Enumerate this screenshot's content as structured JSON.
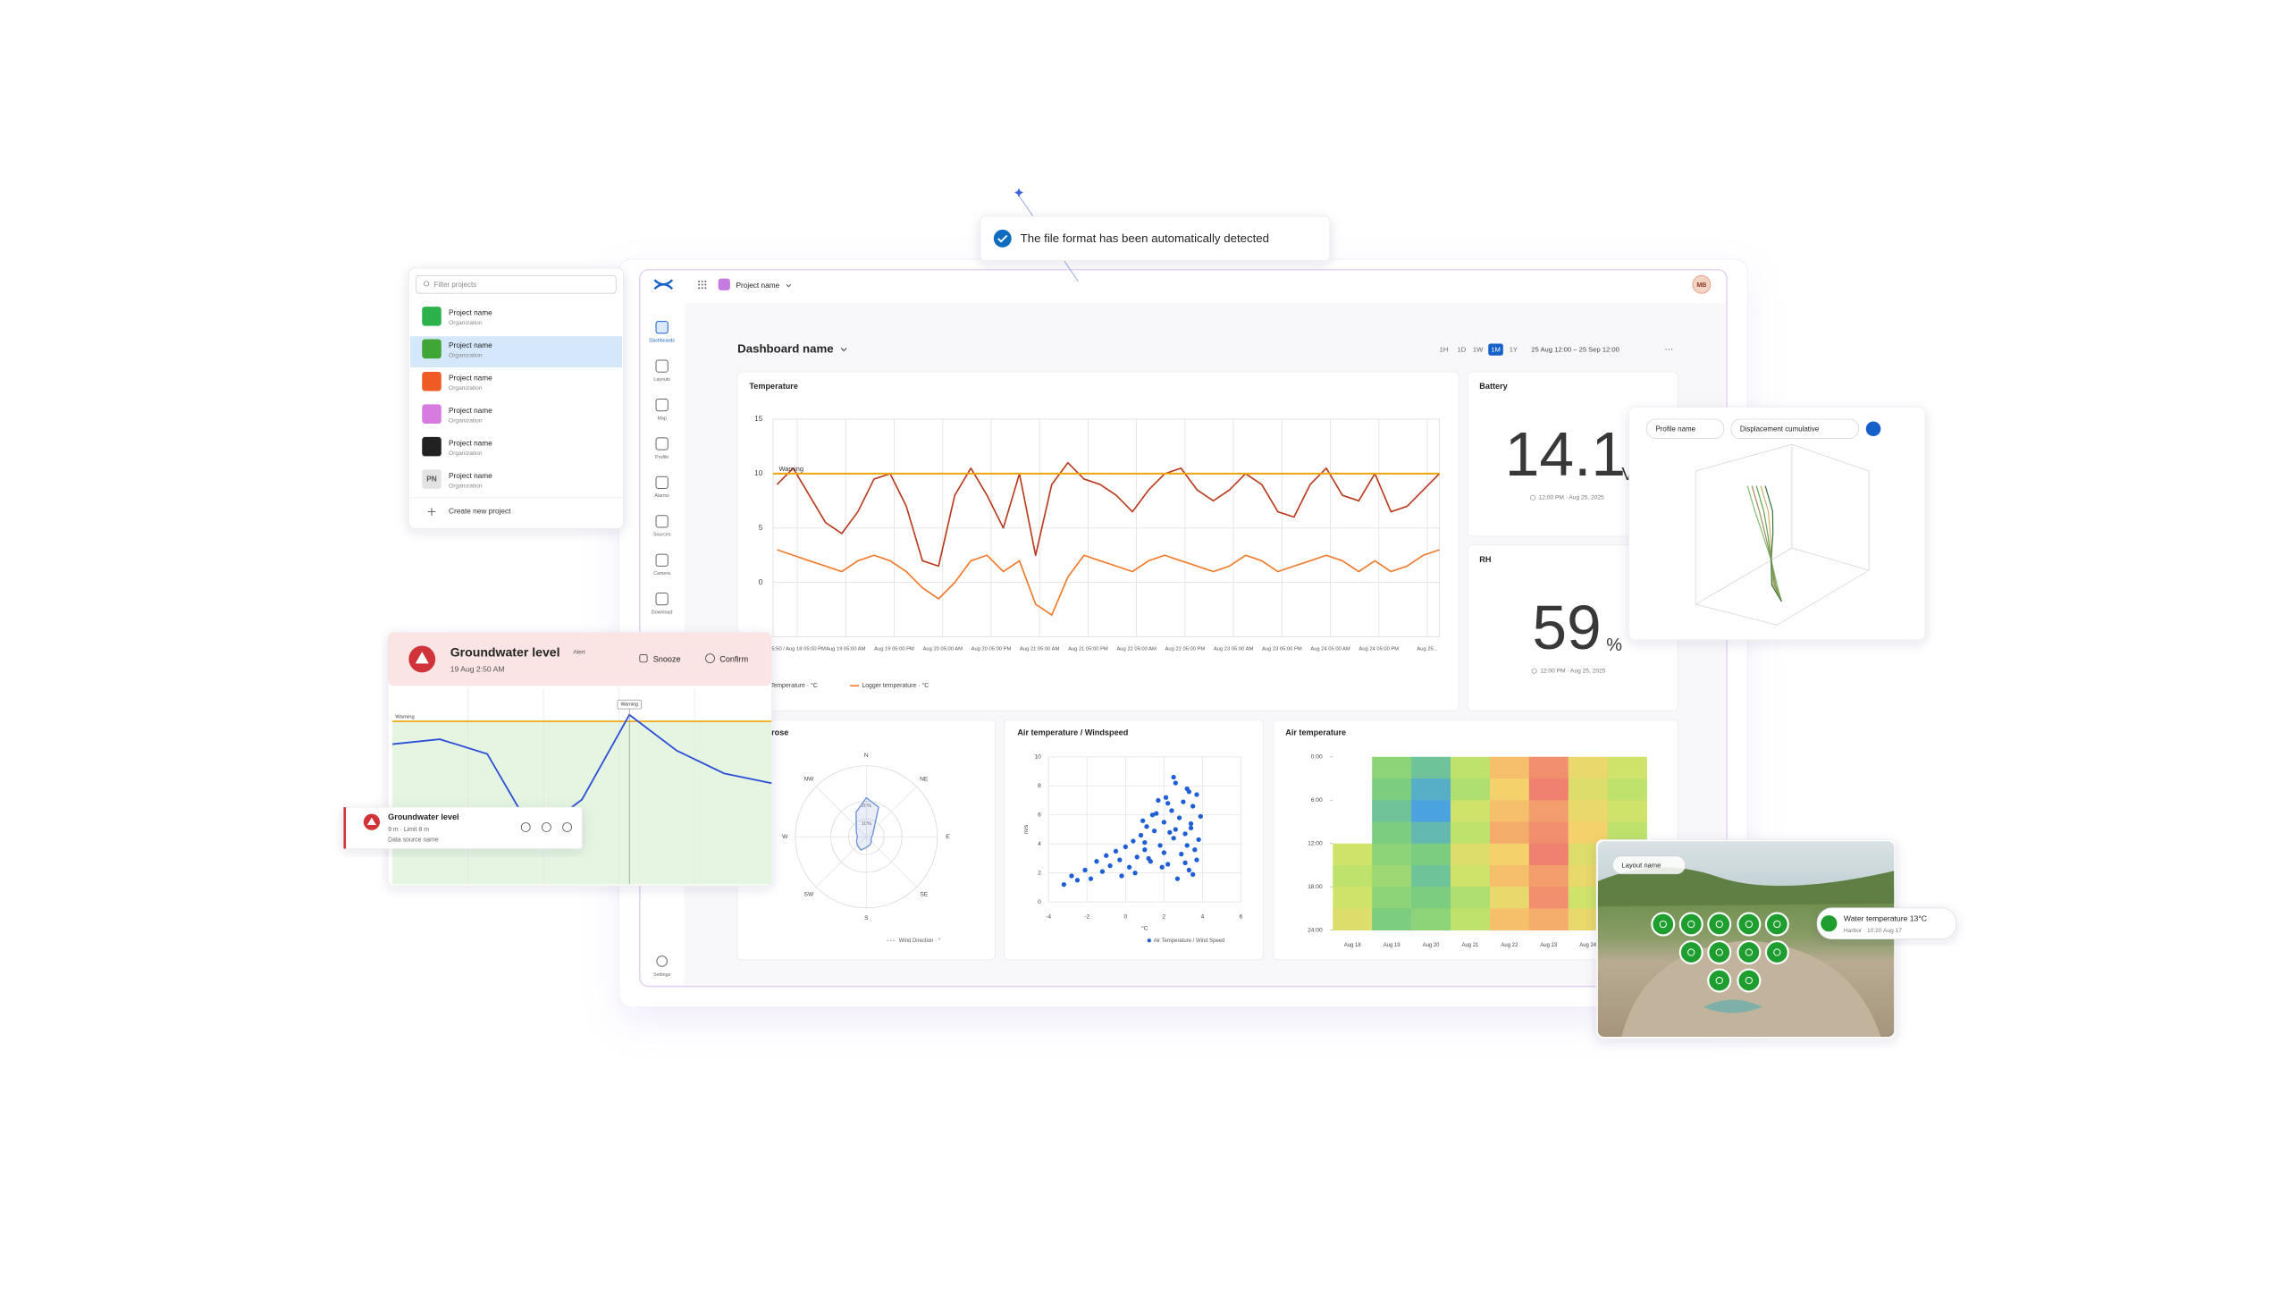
{
  "toast": {
    "message": "The file format has been automatically detected"
  },
  "project_picker": {
    "filter_placeholder": "Filter projects",
    "projects": [
      {
        "name": "Project name",
        "organization": "Organization",
        "color": "#2bb24c"
      },
      {
        "name": "Project name",
        "organization": "Organization",
        "color": "#3fa535",
        "selected": true
      },
      {
        "name": "Project name",
        "organization": "Organization",
        "color": "#f05a24"
      },
      {
        "name": "Project name",
        "organization": "Organization",
        "color": "#d77be0"
      },
      {
        "name": "Project name",
        "organization": "Organization",
        "color": "#222222"
      },
      {
        "name": "Project name",
        "organization": "Organization",
        "badge": "PN"
      }
    ],
    "create_label": "Create new project"
  },
  "app_header": {
    "project": "Project name",
    "avatar": "MB"
  },
  "sidebar": {
    "items": [
      "Dashboards",
      "Layouts",
      "Map",
      "Profile",
      "Alarms",
      "Sources",
      "Camera",
      "Download"
    ],
    "active": "Dashboards",
    "footer": "Settings"
  },
  "dashboard": {
    "title": "Dashboard name",
    "ranges": [
      "1H",
      "1D",
      "1W",
      "1M",
      "1Y"
    ],
    "active_range": "1M",
    "date_range": "25 Aug 12:00 – 25 Sep 12:00",
    "more": "···"
  },
  "metrics": [
    {
      "title": "Battery",
      "value": 14.1,
      "unit": "V",
      "timestamp": "12:00 PM · Aug 25, 2025"
    },
    {
      "title": "RH",
      "value": 59,
      "unit": "%",
      "timestamp": "12:00 PM · Aug 25, 2025"
    }
  ],
  "chart_data": [
    {
      "type": "line",
      "title": "Temperature",
      "x": [
        12,
        16,
        20,
        24,
        28,
        32,
        36,
        40,
        44,
        48,
        52,
        56,
        60,
        64,
        68,
        72,
        76,
        80,
        84,
        88,
        92,
        96,
        100,
        104,
        108,
        112,
        116,
        120,
        124,
        128,
        132,
        136,
        140,
        144,
        148,
        152,
        156,
        160,
        164,
        168,
        172,
        176
      ],
      "xlim": [
        11,
        176
      ],
      "xticks": [
        {
          "value": 17,
          "label": "05:50 / Aug 18 05:00 PM"
        },
        {
          "value": 29,
          "label": "Aug 19 05:00 AM"
        },
        {
          "value": 41,
          "label": "Aug 19 05:00 PM"
        },
        {
          "value": 53,
          "label": "Aug 20 05:00 AM"
        },
        {
          "value": 65,
          "label": "Aug 20 05:00 PM"
        },
        {
          "value": 77,
          "label": "Aug 21 05:00 AM"
        },
        {
          "value": 89,
          "label": "Aug 21 05:00 PM"
        },
        {
          "value": 101,
          "label": "Aug 22 05:00 AM"
        },
        {
          "value": 113,
          "label": "Aug 22 05:00 PM"
        },
        {
          "value": 125,
          "label": "Aug 23 05:00 AM"
        },
        {
          "value": 137,
          "label": "Aug 23 05:00 PM"
        },
        {
          "value": 149,
          "label": "Aug 24 05:00 AM"
        },
        {
          "value": 161,
          "label": "Aug 24 05:00 PM"
        },
        {
          "value": 173,
          "label": "Aug 25..."
        }
      ],
      "ylim": [
        -5,
        15
      ],
      "yticks": [
        0,
        5,
        10,
        15
      ],
      "grid": true,
      "threshold": {
        "value": 10,
        "label": "Warning",
        "color": "#f0a30a"
      },
      "series": [
        {
          "name": "Air Temperature · °C",
          "color": "#b83b1e",
          "values": [
            9,
            10.5,
            8,
            5.5,
            4.5,
            6.5,
            9.5,
            10,
            7,
            2,
            1.5,
            8,
            10.5,
            8,
            5,
            10,
            2.5,
            9,
            11,
            9.5,
            9,
            8,
            6.5,
            8.5,
            10,
            10.5,
            8.5,
            7.5,
            8.5,
            10,
            9,
            6.5,
            6,
            9,
            10.5,
            8,
            7.5,
            10,
            6.5,
            7,
            8.5,
            10
          ]
        },
        {
          "name": "Logger temperature · °C",
          "color": "#f07a2a",
          "values": [
            3,
            2.5,
            2,
            1.5,
            1,
            2,
            2.5,
            2,
            1,
            -0.5,
            -1.5,
            0,
            2,
            2.5,
            1,
            2,
            -2,
            -3,
            0.5,
            2.5,
            2,
            1.5,
            1,
            2,
            2.5,
            2,
            1.5,
            1,
            1.5,
            2.5,
            2,
            1,
            1.5,
            2,
            2.5,
            2,
            1,
            2,
            1,
            1.5,
            2.5,
            3
          ]
        }
      ]
    },
    {
      "type": "polar",
      "title": "Wind rose",
      "directions": [
        "N",
        "NE",
        "E",
        "SE",
        "S",
        "SW",
        "W",
        "NW"
      ],
      "values": [
        22,
        18,
        6,
        4,
        3,
        3,
        4,
        5,
        6,
        8,
        7,
        6,
        5,
        6,
        8,
        15
      ],
      "rlim": [
        0,
        40
      ],
      "rticks": [
        {
          "value": 10,
          "label": "10%"
        },
        {
          "value": 20,
          "label": "20%"
        }
      ],
      "series_name": "Wind Direction · °",
      "color": "#6b8fd6"
    },
    {
      "type": "scatter",
      "title": "Air temperature / Windspeed",
      "x": [
        -3.2,
        -2.8,
        -2.5,
        -2.1,
        -1.8,
        -1.5,
        -1.2,
        -1,
        -0.8,
        -0.5,
        -0.3,
        0,
        0.2,
        0.4,
        0.6,
        0.8,
        1,
        1.1,
        1.3,
        1.5,
        1.6,
        1.8,
        2,
        2.1,
        2.2,
        2.4,
        2.5,
        2.6,
        2.8,
        2.9,
        3,
        3.1,
        3.2,
        3.3,
        3.4,
        3.5,
        3.6,
        3.7,
        3.8,
        3.9,
        0.5,
        1.2,
        1.9,
        2.3,
        2.7,
        3.1,
        3.5,
        1.4,
        2,
        2.6,
        3.2,
        3.7,
        0.9,
        1.7,
        2.5,
        3.3,
        -0.2,
        1,
        2.2,
        3.4
      ],
      "values": [
        1.2,
        1.8,
        1.5,
        2.2,
        1.6,
        2.8,
        2.1,
        3.2,
        2.5,
        3.5,
        2.9,
        3.8,
        2.4,
        4.2,
        3.1,
        4.6,
        3.6,
        5.2,
        2.8,
        4.9,
        6.1,
        3.9,
        5.5,
        7.2,
        2.6,
        6.3,
        4.4,
        8.2,
        5.8,
        3.3,
        6.9,
        4.7,
        7.8,
        2.2,
        5.1,
        6.6,
        3.6,
        7.4,
        4.3,
        5.9,
        2,
        3,
        2.4,
        4.8,
        1.6,
        2.7,
        1.9,
        6,
        3.4,
        5,
        3.9,
        2.9,
        5.6,
        7,
        8.6,
        7.6,
        1.8,
        4.1,
        6.8,
        5.4
      ],
      "xlim": [
        -4,
        6
      ],
      "ylim": [
        0,
        10
      ],
      "xticks": [
        -4,
        -2,
        0,
        2,
        4,
        6
      ],
      "yticks": [
        0,
        2,
        4,
        6,
        8,
        10
      ],
      "xlabel": "°C",
      "ylabel": "m/s",
      "series_name": "Air Temperature / Wind Speed",
      "color": "#1f5fd6",
      "grid": true
    },
    {
      "type": "heatmap",
      "title": "Air temperature",
      "categories": [
        "Aug 18",
        "Aug 19",
        "Aug 20",
        "Aug 21",
        "Aug 22",
        "Aug 23",
        "Aug 24",
        null
      ],
      "ylim": [
        0,
        24
      ],
      "yticks": [
        {
          "value": 0,
          "label": "0:00"
        },
        {
          "value": 6,
          "label": "6:00"
        },
        {
          "value": 12,
          "label": "12:00"
        },
        {
          "value": 18,
          "label": "18:00"
        },
        {
          "value": 24,
          "label": "24:00"
        }
      ],
      "values": [
        [
          null,
          null,
          null,
          null,
          5,
          4.5,
          5,
          5.5
        ],
        [
          3,
          2.5,
          2,
          2.5,
          3,
          3.5,
          3,
          2.5
        ],
        [
          2,
          1,
          0.5,
          1.5,
          2.5,
          2,
          2.5,
          3
        ],
        [
          4.5,
          4,
          5,
          4.5,
          5.5,
          5,
          4,
          4.5
        ],
        [
          7,
          6.5,
          7,
          7.5,
          6.5,
          7,
          6,
          7
        ],
        [
          8.5,
          9,
          8,
          8.5,
          9,
          8,
          8.5,
          7.5
        ],
        [
          6,
          5.5,
          6,
          6.5,
          5.5,
          6,
          5,
          6
        ],
        [
          5,
          4.5,
          5,
          4.5,
          5.5,
          5,
          4.5,
          5
        ]
      ]
    },
    {
      "type": "line",
      "values": [
        7.3,
        7.45,
        7,
        4.5,
        5.6,
        8.2,
        7.1,
        6.4,
        6.1
      ],
      "ylim": [
        3,
        9
      ],
      "threshold": {
        "value": 8,
        "label": "Warning",
        "color": "#f0a30a"
      },
      "annotation": "Warning",
      "color": "#2c4fd8"
    }
  ],
  "alert": {
    "title": "Groundwater level",
    "tag": "Alert",
    "time": "19 Aug 2:50 AM",
    "actions": [
      "Snooze",
      "Confirm"
    ]
  },
  "notification": {
    "title": "Groundwater level",
    "detail": "9 m · Limit 8 m",
    "source": "Data source name"
  },
  "profile_panel": {
    "profile": "Profile name",
    "metric": "Displacement cumulative"
  },
  "map_panel": {
    "layout": "Layout name",
    "tooltip": {
      "title": "Water temperature 13°C",
      "subtitle": "Harbor · 10:20 Aug 17"
    }
  }
}
